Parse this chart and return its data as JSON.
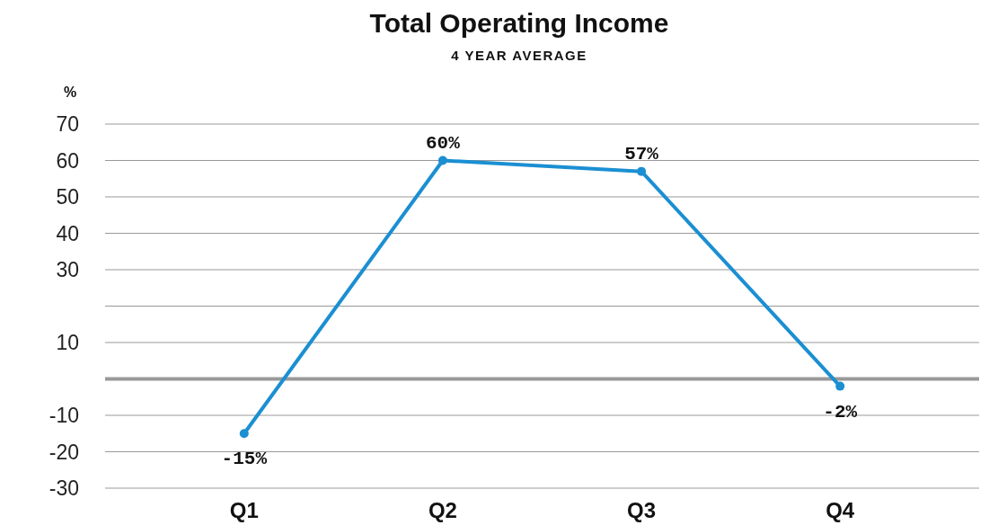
{
  "chart_data": {
    "type": "line",
    "title": "Total Operating Income",
    "subtitle": "4 YEAR AVERAGE",
    "ylabel": "%",
    "categories": [
      "Q1",
      "Q2",
      "Q3",
      "Q4"
    ],
    "series": [
      {
        "color": "#1b8fd2",
        "values": [
          -15,
          60,
          57,
          -2
        ],
        "value_labels": [
          "-15%",
          "60%",
          "57%",
          "-2%"
        ]
      }
    ],
    "ylim": [
      -30,
      70
    ],
    "yticks": [
      70,
      60,
      50,
      40,
      30,
      {
        "value": 20,
        "label": null
      },
      10,
      -10,
      -20,
      -30
    ],
    "ref_lines": [
      {
        "axis": "y",
        "value": 0,
        "color": "#999999"
      }
    ],
    "grid": "y",
    "marker": "circle",
    "line_style": "solid"
  }
}
